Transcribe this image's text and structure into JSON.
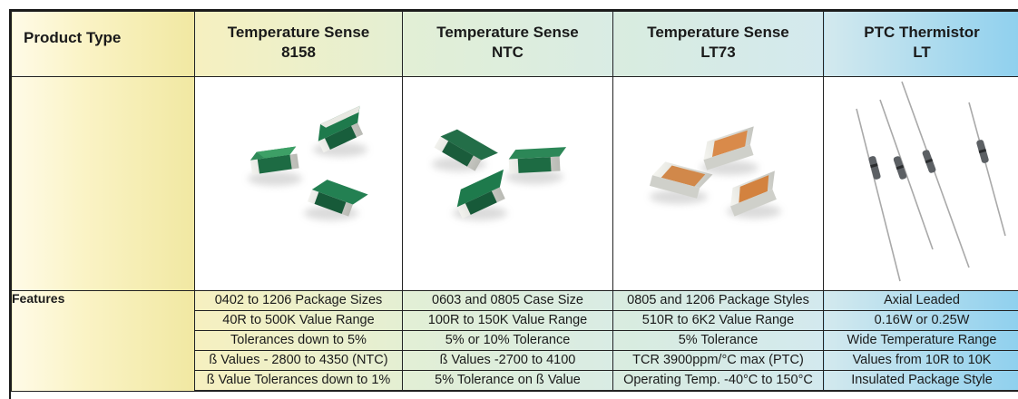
{
  "header": {
    "label": "Product Type",
    "columns": [
      {
        "line1": "Temperature Sense",
        "line2": "8158"
      },
      {
        "line1": "Temperature Sense",
        "line2": "NTC"
      },
      {
        "line1": "Temperature Sense",
        "line2": "LT73"
      },
      {
        "line1": "PTC Thermistor",
        "line2": "LT"
      }
    ]
  },
  "images": [
    {
      "icon": "green-chip-resistors-icon"
    },
    {
      "icon": "green-chip-resistors-icon"
    },
    {
      "icon": "orange-chip-resistors-icon"
    },
    {
      "icon": "axial-leaded-thermistors-icon"
    }
  ],
  "features": {
    "label": "Features",
    "columns": [
      [
        "0402 to 1206 Package Sizes",
        "40R to 500K Value Range",
        "Tolerances down to 5%",
        "ß Values - 2800 to 4350 (NTC)",
        "ß Value Tolerances down to 1%"
      ],
      [
        "0603 and 0805 Case Size",
        "100R to 150K Value Range",
        "5% or 10% Tolerance",
        "ß Values -2700 to 4100",
        "5% Tolerance on ß Value"
      ],
      [
        "0805 and 1206 Package Styles",
        "510R to 6K2 Value Range",
        "5% Tolerance",
        "TCR  3900ppm/°C max (PTC)",
        "Operating Temp. -40°C to 150°C"
      ],
      [
        "Axial Leaded",
        "0.16W or 0.25W",
        "Wide Temperature Range",
        "Values from 10R to 10K",
        "Insulated Package Style"
      ]
    ]
  },
  "colors": {
    "green_body": "#1e7a4c",
    "orange_body": "#d98a4a",
    "label_bg": "#f1e8a2",
    "ptc_bg": "#8fd0ee"
  }
}
